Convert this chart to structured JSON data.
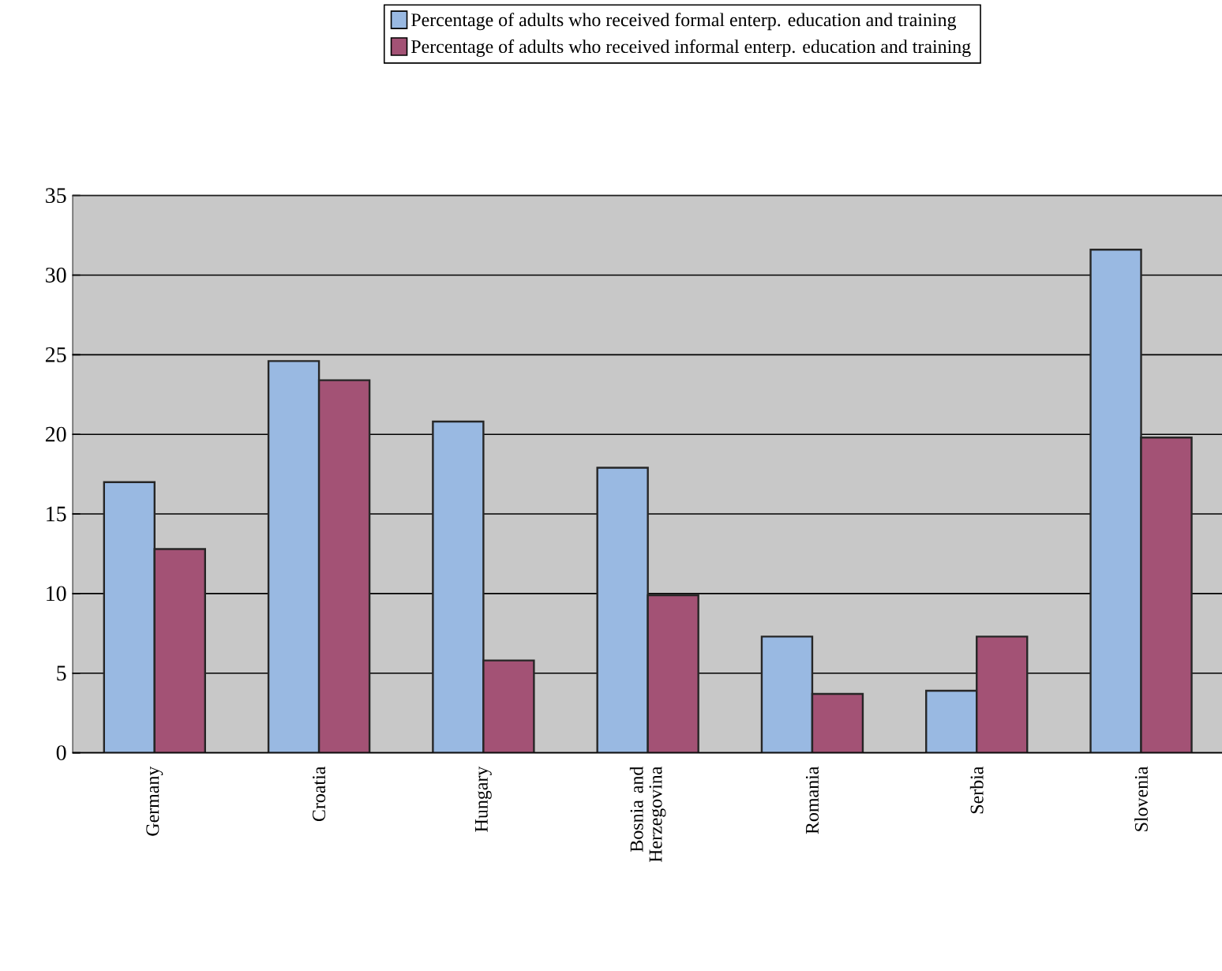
{
  "chart_data": {
    "type": "bar",
    "categories": [
      "Germany",
      "Croatia",
      "Hungary",
      "Bosnia and Herzegovina",
      "Romania",
      "Serbia",
      "Slovenia"
    ],
    "series": [
      {
        "name": "Percentage of adults who received formal enterp. education and training",
        "color": "#99b9e2",
        "values": [
          17.0,
          24.6,
          20.8,
          17.9,
          7.3,
          3.9,
          31.6
        ]
      },
      {
        "name": "Percentage of adults who received informal enterp. education and training",
        "color": "#a35275",
        "values": [
          12.8,
          23.4,
          5.8,
          9.9,
          3.7,
          7.3,
          19.8
        ]
      }
    ],
    "ylim": [
      0,
      35
    ],
    "yticks": [
      0,
      5,
      10,
      15,
      20,
      25,
      30,
      35
    ],
    "grid": "y",
    "legend": "top"
  }
}
